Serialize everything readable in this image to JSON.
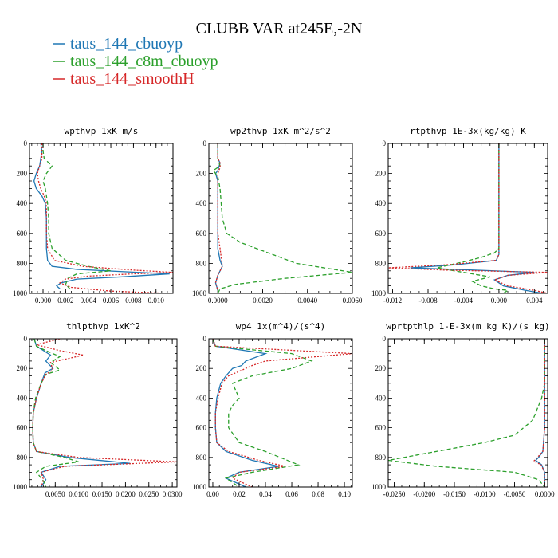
{
  "figure_title": "CLUBB VAR at245E,-2N",
  "legend": [
    {
      "label": "taus_144_cbuoyp",
      "color": "#1f77b4",
      "dash": "solid"
    },
    {
      "label": "taus_144_c8m_cbuoyp",
      "color": "#2ca02c",
      "dash": "dashed"
    },
    {
      "label": "taus_144_smoothH",
      "color": "#d62728",
      "dash": "dotted"
    }
  ],
  "chart_data": [
    {
      "type": "line",
      "title": "wpthvp  1xK m/s",
      "xlim": [
        -0.0012,
        0.0115
      ],
      "ylim": [
        1000,
        0
      ],
      "xticks": [
        0.0,
        0.002,
        0.004,
        0.006,
        0.008,
        0.01
      ],
      "xtick_labels": [
        "0.000",
        "0.002",
        "0.004",
        "0.006",
        "0.008",
        "0.010"
      ],
      "yticks": [
        0,
        200,
        400,
        600,
        800,
        1000
      ],
      "ytick_labels": [
        "0",
        "200",
        "400",
        "600",
        "800",
        "1000"
      ],
      "series": [
        {
          "name": "taus_144_cbuoyp",
          "x": [
            -0.0002,
            -0.0001,
            -0.0002,
            -0.0003,
            -0.0006,
            -0.0008,
            -0.0006,
            -0.0001,
            0.0002,
            0.0003,
            0.0003,
            0.0003,
            0.0004,
            0.0008,
            0.003,
            0.007,
            0.0112,
            0.007,
            0.003,
            0.0016,
            0.0012,
            0.0015
          ],
          "y": [
            0,
            50,
            100,
            150,
            200,
            250,
            300,
            350,
            400,
            500,
            600,
            700,
            780,
            820,
            840,
            855,
            870,
            890,
            905,
            930,
            950,
            970
          ]
        },
        {
          "name": "taus_144_c8m_cbuoyp",
          "x": [
            0.0,
            0.0,
            0.0001,
            0.0008,
            0.0003,
            0.0,
            0.0002,
            0.0004,
            0.0005,
            0.0005,
            0.0008,
            0.002,
            0.004,
            0.006,
            0.003,
            0.0022,
            0.002,
            0.0025
          ],
          "y": [
            0,
            50,
            100,
            150,
            200,
            250,
            300,
            400,
            500,
            600,
            700,
            780,
            820,
            850,
            870,
            900,
            940,
            980
          ]
        },
        {
          "name": "taus_144_smoothH",
          "x": [
            -0.0001,
            -0.0001,
            -0.0001,
            -0.0003,
            -0.0005,
            -0.0004,
            -0.0002,
            0.0001,
            0.0003,
            0.0003,
            0.0003,
            0.0004,
            0.001,
            0.0035,
            0.008,
            0.0115,
            0.008,
            0.004,
            0.002,
            0.0015,
            0.0025,
            0.006,
            0.011
          ],
          "y": [
            0,
            50,
            100,
            150,
            200,
            250,
            300,
            350,
            400,
            500,
            600,
            700,
            780,
            820,
            845,
            860,
            870,
            885,
            905,
            930,
            960,
            985,
            1000
          ]
        }
      ]
    },
    {
      "type": "line",
      "title": "wp2thvp  1xK m^2/s^2",
      "xlim": [
        -0.0004,
        0.006
      ],
      "ylim": [
        1000,
        0
      ],
      "xticks": [
        0.0,
        0.002,
        0.004,
        0.006
      ],
      "xtick_labels": [
        "0.0000",
        "0.0020",
        "0.0040",
        "0.0060"
      ],
      "yticks": [
        0,
        200,
        400,
        600,
        800,
        1000
      ],
      "ytick_labels": [
        "0",
        "200",
        "400",
        "600",
        "800",
        "1000"
      ],
      "series": [
        {
          "name": "taus_144_cbuoyp",
          "x": [
            0.0,
            0.0,
            0.0001,
            0.0,
            -0.0001,
            0.0,
            0.0,
            0.0,
            0.0,
            0.0,
            0.0,
            0.0001,
            0.0002,
            0.0,
            -0.0001,
            0.0
          ],
          "y": [
            0,
            100,
            130,
            180,
            200,
            250,
            300,
            400,
            500,
            600,
            700,
            780,
            820,
            880,
            930,
            980
          ]
        },
        {
          "name": "taus_144_c8m_cbuoyp",
          "x": [
            0.0,
            0.0,
            0.0001,
            -0.0002,
            0.0,
            0.0001,
            0.0002,
            0.0004,
            0.001,
            0.0035,
            0.006,
            0.003,
            0.0008,
            0.0001,
            0.0
          ],
          "y": [
            0,
            100,
            150,
            180,
            220,
            300,
            500,
            600,
            660,
            800,
            860,
            900,
            940,
            970,
            1000
          ]
        },
        {
          "name": "taus_144_smoothH",
          "x": [
            0.0,
            0.0,
            0.0001,
            0.0001,
            0.0,
            0.0,
            0.0,
            0.0,
            0.0,
            0.0001,
            0.0002,
            0.0,
            -0.0001,
            0.0
          ],
          "y": [
            0,
            100,
            130,
            160,
            200,
            300,
            400,
            500,
            600,
            700,
            820,
            880,
            930,
            980
          ]
        }
      ]
    },
    {
      "type": "line",
      "title": "rtpthvp  1E-3x(kg/kg) K",
      "xlim": [
        -0.0125,
        0.0055
      ],
      "ylim": [
        1000,
        0
      ],
      "xticks": [
        -0.012,
        -0.008,
        -0.004,
        0.0,
        0.004
      ],
      "xtick_labels": [
        "-0.012",
        "-0.008",
        "-0.004",
        "0.000",
        "0.004"
      ],
      "yticks": [
        0,
        200,
        400,
        600,
        800,
        1000
      ],
      "ytick_labels": [
        "0",
        "200",
        "400",
        "600",
        "800",
        "1000"
      ],
      "series": [
        {
          "name": "taus_144_cbuoyp",
          "x": [
            0.0,
            0.0,
            0.0,
            0.0,
            -0.0003,
            -0.005,
            -0.01,
            -0.005,
            0.004,
            0.001,
            -0.0005,
            0.0005,
            0.003,
            0.005
          ],
          "y": [
            0,
            300,
            600,
            740,
            780,
            810,
            830,
            840,
            860,
            880,
            910,
            950,
            980,
            1000
          ]
        },
        {
          "name": "taus_144_c8m_cbuoyp",
          "x": [
            0.0,
            0.0,
            0.0,
            0.0,
            -0.0005,
            -0.002,
            -0.004,
            -0.007,
            -0.004,
            -0.001,
            -0.003,
            -0.002,
            -0.0005,
            0.001,
            0.0005
          ],
          "y": [
            0,
            300,
            600,
            700,
            730,
            760,
            790,
            830,
            860,
            890,
            920,
            950,
            970,
            980,
            1000
          ]
        },
        {
          "name": "taus_144_smoothH",
          "x": [
            0.0,
            0.0,
            0.0,
            0.0,
            -0.0003,
            -0.006,
            -0.0125,
            -0.006,
            0.0055,
            0.001,
            -0.0005,
            0.001,
            0.004,
            0.0055
          ],
          "y": [
            0,
            300,
            600,
            740,
            780,
            810,
            830,
            845,
            860,
            880,
            910,
            950,
            980,
            1000
          ]
        }
      ]
    },
    {
      "type": "line",
      "title": "thlpthvp  1xK^2",
      "xlim": [
        -0.0005,
        0.031
      ],
      "ylim": [
        1000,
        0
      ],
      "xticks": [
        0.005,
        0.01,
        0.015,
        0.02,
        0.025,
        0.03
      ],
      "xtick_labels": [
        "0.0050",
        "0.0100",
        "0.0150",
        "0.0200",
        "0.0250",
        "0.0300"
      ],
      "yticks": [
        0,
        200,
        400,
        600,
        800,
        1000
      ],
      "ytick_labels": [
        "0",
        "200",
        "400",
        "600",
        "800",
        "1000"
      ],
      "series": [
        {
          "name": "taus_144_cbuoyp",
          "x": [
            0.0005,
            0.001,
            0.0025,
            0.004,
            0.003,
            0.0045,
            0.0028,
            0.002,
            0.001,
            0.0003,
            0.0002,
            0.0003,
            0.001,
            0.008,
            0.021,
            0.006,
            0.002,
            0.003,
            0.002
          ],
          "y": [
            0,
            50,
            80,
            110,
            150,
            200,
            230,
            300,
            400,
            500,
            600,
            700,
            760,
            800,
            840,
            860,
            900,
            950,
            1000
          ]
        },
        {
          "name": "taus_144_c8m_cbuoyp",
          "x": [
            0.0005,
            0.001,
            0.003,
            0.006,
            0.004,
            0.006,
            0.003,
            0.002,
            0.0008,
            0.0003,
            0.0002,
            0.0003,
            0.001,
            0.007,
            0.01,
            0.003,
            0.001,
            0.0025,
            0.003
          ],
          "y": [
            0,
            50,
            80,
            120,
            160,
            210,
            240,
            300,
            400,
            500,
            600,
            700,
            760,
            800,
            830,
            860,
            900,
            960,
            1000
          ]
        },
        {
          "name": "taus_144_smoothH",
          "x": [
            0.006,
            0.001,
            0.006,
            0.011,
            0.004,
            0.0045,
            0.003,
            0.002,
            0.001,
            0.0003,
            0.0002,
            0.0003,
            0.001,
            0.01,
            0.031,
            0.007,
            0.002,
            0.0025,
            0.002
          ],
          "y": [
            0,
            40,
            80,
            110,
            160,
            210,
            240,
            300,
            400,
            500,
            600,
            700,
            760,
            800,
            830,
            860,
            900,
            950,
            1000
          ]
        }
      ]
    },
    {
      "type": "line",
      "title": "wp4  1x(m^4)/(s^4)",
      "xlim": [
        -0.003,
        0.106
      ],
      "ylim": [
        1000,
        0
      ],
      "xticks": [
        0.0,
        0.02,
        0.04,
        0.06,
        0.08,
        0.1
      ],
      "xtick_labels": [
        "0.00",
        "0.02",
        "0.04",
        "0.06",
        "0.08",
        "0.10"
      ],
      "yticks": [
        0,
        200,
        400,
        600,
        800,
        1000
      ],
      "ytick_labels": [
        "0",
        "200",
        "400",
        "600",
        "800",
        "1000"
      ],
      "series": [
        {
          "name": "taus_144_cbuoyp",
          "x": [
            0.0,
            0.002,
            0.04,
            0.025,
            0.022,
            0.015,
            0.01,
            0.006,
            0.003,
            0.002,
            0.002,
            0.003,
            0.01,
            0.03,
            0.05,
            0.02,
            0.01,
            0.02,
            0.025
          ],
          "y": [
            0,
            50,
            100,
            150,
            180,
            200,
            250,
            300,
            400,
            500,
            600,
            700,
            760,
            820,
            860,
            900,
            940,
            980,
            1000
          ]
        },
        {
          "name": "taus_144_c8m_cbuoyp",
          "x": [
            0.0,
            0.002,
            0.06,
            0.075,
            0.06,
            0.03,
            0.015,
            0.02,
            0.015,
            0.012,
            0.012,
            0.02,
            0.04,
            0.065,
            0.03,
            0.01,
            0.015,
            0.02
          ],
          "y": [
            0,
            50,
            100,
            150,
            200,
            250,
            300,
            400,
            450,
            500,
            600,
            700,
            760,
            850,
            900,
            940,
            970,
            1000
          ]
        },
        {
          "name": "taus_144_smoothH",
          "x": [
            0.0,
            0.002,
            0.106,
            0.04,
            0.03,
            0.02,
            0.012,
            0.007,
            0.004,
            0.002,
            0.002,
            0.003,
            0.012,
            0.035,
            0.055,
            0.02,
            0.015,
            0.025,
            0.03
          ],
          "y": [
            0,
            50,
            100,
            150,
            180,
            220,
            250,
            300,
            400,
            500,
            600,
            700,
            760,
            820,
            860,
            900,
            940,
            980,
            1000
          ]
        }
      ]
    },
    {
      "type": "line",
      "title": "wprtpthlp  1-E-3x(m kg K)/(s kg)",
      "xlim": [
        -0.026,
        0.0005
      ],
      "ylim": [
        1000,
        0
      ],
      "xticks": [
        -0.025,
        -0.02,
        -0.015,
        -0.01,
        -0.005,
        0.0
      ],
      "xtick_labels": [
        "-0.0250",
        "-0.0200",
        "-0.0150",
        "-0.0100",
        "-0.0050",
        "0.0000"
      ],
      "yticks": [
        0,
        200,
        400,
        600,
        800,
        1000
      ],
      "ytick_labels": [
        "0",
        "200",
        "400",
        "600",
        "800",
        "1000"
      ],
      "series": [
        {
          "name": "taus_144_cbuoyp",
          "x": [
            0.0,
            0.0,
            0.0,
            -0.0003,
            -0.001,
            -0.0015,
            -0.0005,
            0.0,
            0.0
          ],
          "y": [
            0,
            200,
            600,
            760,
            800,
            820,
            850,
            900,
            1000
          ]
        },
        {
          "name": "taus_144_c8m_cbuoyp",
          "x": [
            0.0,
            0.0,
            -0.0005,
            -0.002,
            -0.005,
            -0.01,
            -0.018,
            -0.026,
            -0.018,
            -0.005,
            -0.001,
            0.0
          ],
          "y": [
            0,
            300,
            400,
            550,
            650,
            700,
            760,
            820,
            860,
            900,
            950,
            1000
          ]
        },
        {
          "name": "taus_144_smoothH",
          "x": [
            0.0,
            0.0,
            0.0,
            -0.0003,
            -0.0012,
            -0.0018,
            -0.0006,
            0.0,
            0.0
          ],
          "y": [
            0,
            200,
            600,
            760,
            800,
            825,
            850,
            900,
            1000
          ]
        }
      ]
    }
  ]
}
